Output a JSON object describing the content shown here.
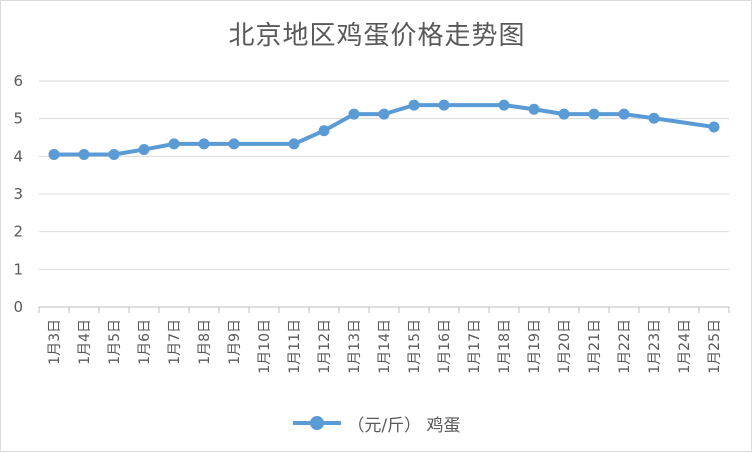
{
  "chart_data": {
    "type": "line",
    "title": "北京地区鸡蛋价格走势图",
    "categories": [
      "1月3日",
      "1月4日",
      "1月5日",
      "1月6日",
      "1月7日",
      "1月8日",
      "1月9日",
      "1月10日",
      "1月11日",
      "1月12日",
      "1月13日",
      "1月14日",
      "1月15日",
      "1月16日",
      "1月17日",
      "1月18日",
      "1月19日",
      "1月20日",
      "1月21日",
      "1月22日",
      "1月23日",
      "1月24日",
      "1月25日"
    ],
    "series": [
      {
        "name": "（元/斤） 鸡蛋",
        "color": "#5b9bd5",
        "values": [
          4.05,
          4.05,
          4.05,
          4.18,
          4.33,
          4.33,
          4.33,
          null,
          4.33,
          4.68,
          5.12,
          5.12,
          5.36,
          5.36,
          null,
          5.36,
          5.25,
          5.12,
          5.12,
          5.12,
          5.01,
          null,
          4.78
        ]
      }
    ],
    "ylim": [
      0,
      6
    ],
    "yticks": [
      "0",
      "1",
      "2",
      "3",
      "4",
      "5",
      "6"
    ],
    "grid": true,
    "legend_position": "bottom"
  }
}
